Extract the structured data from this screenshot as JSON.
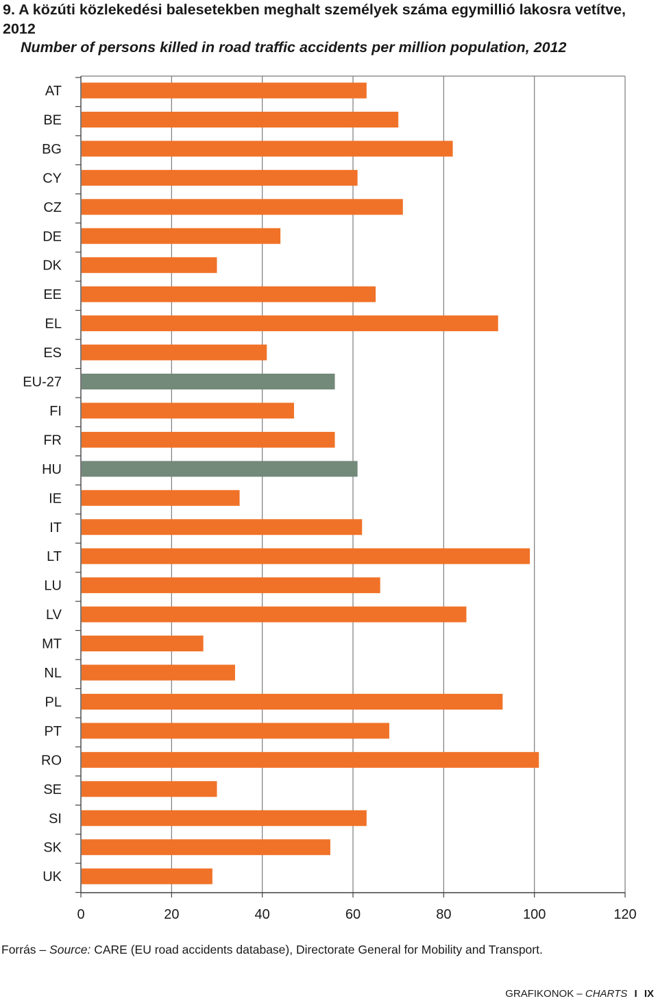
{
  "header": {
    "title_hu": "9. A közúti közlekedési balesetekben meghalt személyek száma egymillió lakosra vetítve, 2012",
    "title_en": "Number of persons killed in road traffic accidents per million population, 2012"
  },
  "chart_data": {
    "type": "bar",
    "orientation": "horizontal",
    "title": "9. A közúti közlekedési balesetekben meghalt személyek száma egymillió lakosra vetítve, 2012 / Number of persons killed in road traffic accidents per million population, 2012",
    "xlabel": "",
    "ylabel": "",
    "xlim": [
      0,
      120
    ],
    "xticks": [
      0,
      20,
      40,
      60,
      80,
      100,
      120
    ],
    "grid": "vertical",
    "categories": [
      "AT",
      "BE",
      "BG",
      "CY",
      "CZ",
      "DE",
      "DK",
      "EE",
      "EL",
      "ES",
      "EU-27",
      "FI",
      "FR",
      "HU",
      "IE",
      "IT",
      "LT",
      "LU",
      "LV",
      "MT",
      "NL",
      "PL",
      "PT",
      "RO",
      "SE",
      "SI",
      "SK",
      "UK"
    ],
    "values": [
      63,
      70,
      82,
      61,
      71,
      44,
      30,
      65,
      92,
      41,
      56,
      47,
      56,
      61,
      35,
      62,
      99,
      66,
      85,
      27,
      34,
      93,
      68,
      101,
      30,
      63,
      55,
      29
    ],
    "highlight": [
      "EU-27",
      "HU"
    ],
    "colors": {
      "default": "#f07228",
      "highlight": "#73897a",
      "grid": "#7a7a7a",
      "axis": "#404040"
    }
  },
  "source": {
    "label_hu": "Forrás",
    "dash": "–",
    "label_en": "Source:",
    "text": "CARE (EU road accidents database), Directorate General for Mobility and Transport."
  },
  "footer": {
    "left": "GRAFIKONOK",
    "dash": "–",
    "right": "CHARTS",
    "sep": "I",
    "page": "IX"
  }
}
